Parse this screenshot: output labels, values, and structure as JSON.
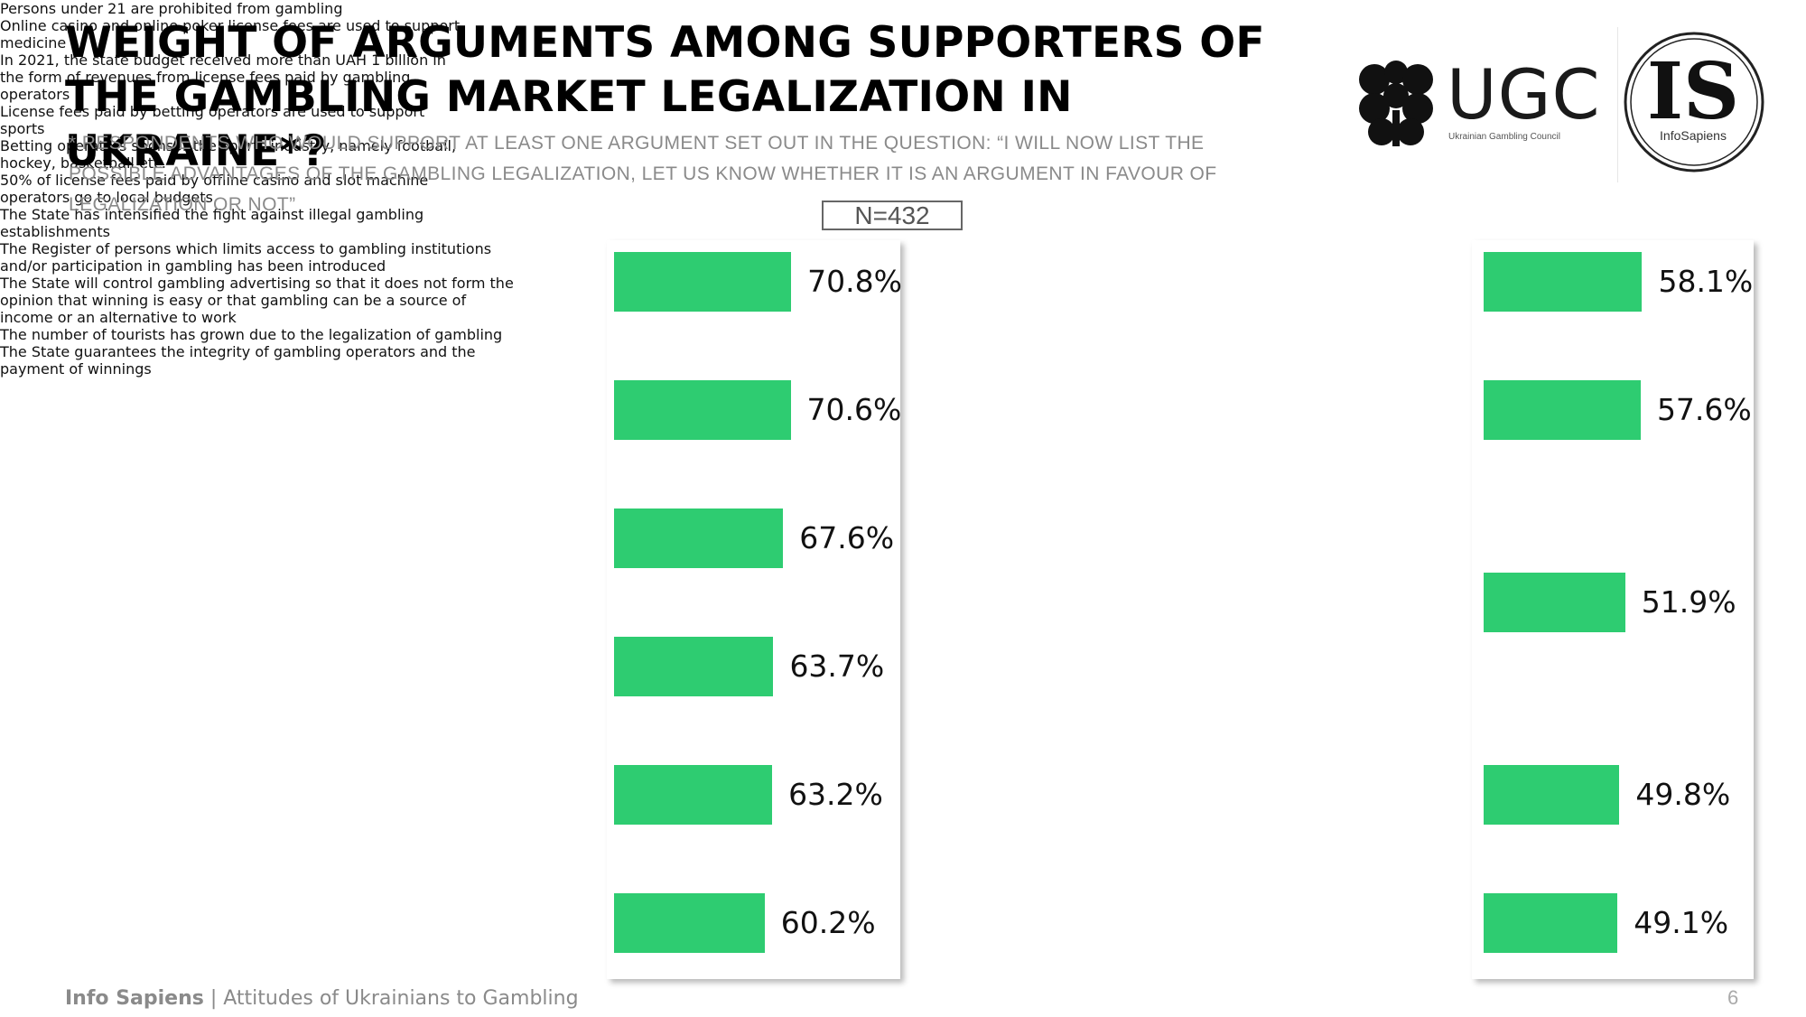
{
  "title": "WEIGHT OF ARGUMENTS AMONG SUPPORTERS OF THE GAMBLING MARKET LEGALIZATION IN UKRAINE*?",
  "subtitle": "* RESPONDENTS WHO WOULD SUPPORT AT LEAST ONE ARGUMENT SET OUT IN THE QUESTION: “I WILL NOW LIST THE POSSIBLE ADVANTAGES OF THE GAMBLING LEGALIZATION, LET US KNOW WHETHER IT IS AN ARGUMENT IN FAVOUR OF LEGALIZATION OR NOT”",
  "sample": "N=432",
  "logos": {
    "ugc_word": "UGC",
    "ugc_tag": "Ukrainian Gambling Council",
    "is_word": "IS",
    "is_sub": "InfoSapiens"
  },
  "footer": {
    "brand": "Info Sapiens",
    "separator": " | ",
    "text": "Attitudes of Ukrainians to Gambling",
    "page": "6"
  },
  "colors": {
    "bar": "#2ecc71",
    "separator": "#c8c8c8"
  },
  "chart_data": [
    {
      "type": "bar",
      "orientation": "horizontal",
      "xlim": [
        0,
        100
      ],
      "unit": "%",
      "categories": [
        "Persons under 21 are prohibited from gambling",
        "Online casino and online poker license fees are used to support medicine",
        "In 2021, the state budget received more than UAH 1 billion in the form of revenues from license fees paid by gambling operators",
        "License fees paid by betting operators are used to support sports",
        "Betting operators sponsor the sports industry, namely football, hockey, basketball etc.",
        "50% of license fees paid by offline casino and slot machine operators go to local budgets"
      ],
      "values": [
        70.8,
        70.6,
        67.6,
        63.7,
        63.2,
        60.2
      ],
      "value_labels": [
        "70.8%",
        "70.6%",
        "67.6%",
        "63.7%",
        "63.2%",
        "60.2%"
      ]
    },
    {
      "type": "bar",
      "orientation": "horizontal",
      "xlim": [
        0,
        100
      ],
      "unit": "%",
      "categories": [
        "The State has intensified the fight against illegal gambling establishments",
        "The Register of persons which limits access to gambling institutions and/or participation in gambling has been introduced",
        "The State will control gambling advertising so that it does not form the opinion that winning is easy or that gambling can be a source of income or an alternative to work",
        "The number of tourists has grown due to the legalization of gambling",
        "The State guarantees the integrity of gambling operators and the payment of winnings"
      ],
      "values": [
        58.1,
        57.6,
        51.9,
        49.8,
        49.1
      ],
      "value_labels": [
        "58.1%",
        "57.6%",
        "51.9%",
        "49.8%",
        "49.1%"
      ]
    }
  ]
}
